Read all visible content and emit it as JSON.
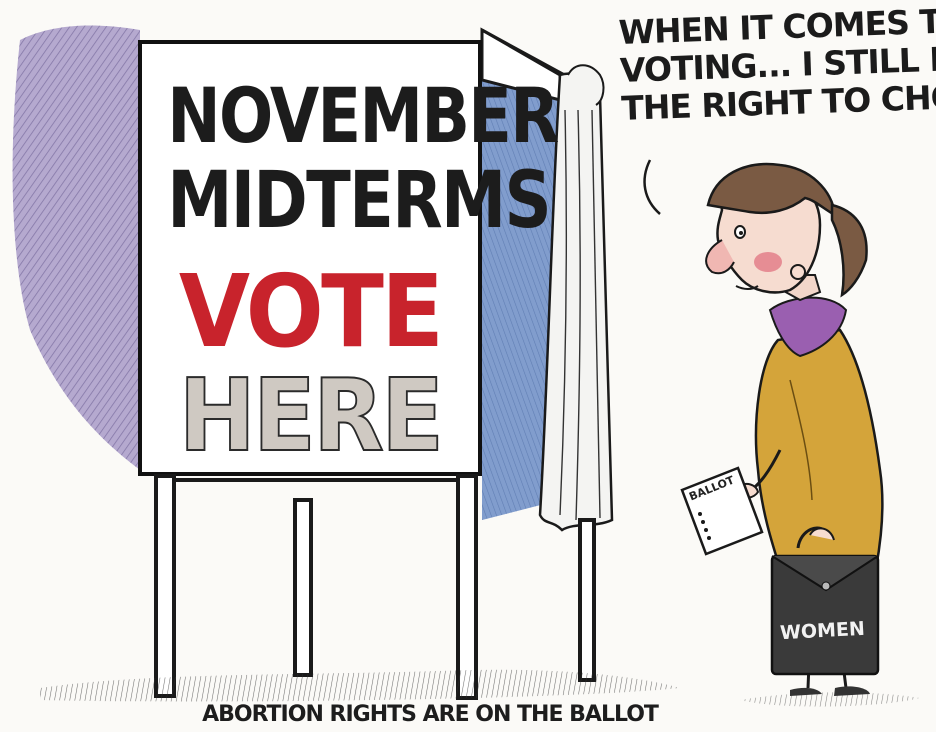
{
  "sign": {
    "line1": "NOVEMBER",
    "line2": "MIDTERMS",
    "line3": "VOTE",
    "line4": "HERE"
  },
  "speech_bubble": {
    "line1": "WHEN IT COMES TO",
    "line2": "VOTING... I STILL HAVE",
    "line3": "THE RIGHT TO CHOOSE!"
  },
  "ballot_label": "BALLOT",
  "bag_label": "WOMEN",
  "caption": "ABORTION RIGHTS ARE ON THE BALLOT",
  "colors": {
    "vote_red": "#c8232c",
    "here_gray": "#cfc9c2",
    "shadow_purple": "#8b7bb0",
    "booth_blue": "#5d7fb8",
    "outfit_mustard": "#d4a43a",
    "scarf_purple": "#9a5fb0",
    "hair_brown": "#7a5a43",
    "bag_dark": "#3a3a3a"
  }
}
